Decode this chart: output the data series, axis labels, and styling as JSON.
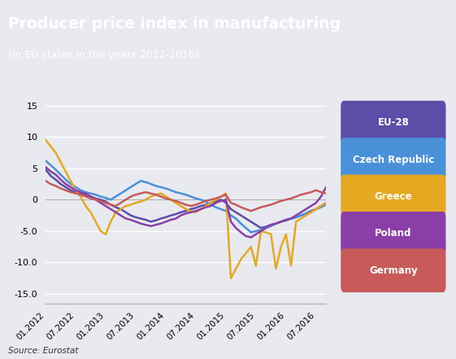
{
  "title": "Producer price index in manufacturing",
  "subtitle": "(in EU states in the years 2012-2016)",
  "source": "Source: Eurostat",
  "bg_chart": "#e8eaf0",
  "bg_title": "#12206e",
  "yticks": [
    -15,
    -10,
    -5,
    0,
    5,
    10,
    15
  ],
  "ytick_labels": [
    "-15.0",
    "-10.0",
    "-5.0",
    "0",
    "5",
    "10",
    "15"
  ],
  "x_tick_pos": [
    0,
    6,
    12,
    18,
    24,
    30,
    36,
    42,
    48,
    54
  ],
  "x_tick_labels": [
    "01.2012",
    "07.2012",
    "01.2013",
    "07.2013",
    "01.2014",
    "07.2014",
    "01.2015",
    "07.2015",
    "01.2016",
    "07.2016"
  ],
  "legend_items": [
    {
      "label": "EU-28",
      "color": "#5b4ea8"
    },
    {
      "label": "Czech Republic",
      "color": "#4a90d9"
    },
    {
      "label": "Greece",
      "color": "#e5a820"
    },
    {
      "label": "Poland",
      "color": "#8b3ea8"
    },
    {
      "label": "Germany",
      "color": "#c85a5a"
    }
  ],
  "series": {
    "EU-28": [
      4.8,
      3.8,
      3.2,
      2.5,
      2.0,
      1.5,
      1.2,
      1.0,
      0.8,
      0.5,
      0.2,
      0.0,
      -0.3,
      -0.8,
      -1.2,
      -1.5,
      -2.0,
      -2.5,
      -2.8,
      -3.0,
      -3.2,
      -3.5,
      -3.3,
      -3.0,
      -2.8,
      -2.5,
      -2.3,
      -2.0,
      -1.8,
      -1.5,
      -1.3,
      -1.0,
      -0.8,
      -0.5,
      -0.3,
      0.0,
      -0.5,
      -1.5,
      -2.0,
      -2.5,
      -3.0,
      -3.5,
      -4.0,
      -4.5,
      -4.3,
      -4.0,
      -3.8,
      -3.5,
      -3.3,
      -3.0,
      -2.8,
      -2.5,
      -2.2,
      -1.8,
      -1.5,
      -1.0,
      -0.5
    ],
    "Czech Republic": [
      6.2,
      5.5,
      4.8,
      4.0,
      3.2,
      2.5,
      2.0,
      1.5,
      1.2,
      1.0,
      0.8,
      0.5,
      0.3,
      0.0,
      0.5,
      1.0,
      1.5,
      2.0,
      2.5,
      3.0,
      2.8,
      2.5,
      2.2,
      2.0,
      1.8,
      1.5,
      1.2,
      1.0,
      0.8,
      0.5,
      0.2,
      0.0,
      -0.3,
      -0.8,
      -1.2,
      -1.5,
      -1.8,
      -2.5,
      -3.0,
      -3.8,
      -4.5,
      -5.2,
      -5.0,
      -4.8,
      -4.5,
      -4.2,
      -3.8,
      -3.5,
      -3.2,
      -3.0,
      -2.8,
      -2.5,
      -2.2,
      -2.0,
      -1.5,
      -1.2,
      -0.8
    ],
    "Greece": [
      9.5,
      8.5,
      7.5,
      6.0,
      4.5,
      3.0,
      1.5,
      0.5,
      -1.0,
      -2.0,
      -3.5,
      -5.0,
      -5.5,
      -3.5,
      -2.0,
      -1.5,
      -1.0,
      -0.8,
      -0.5,
      -0.3,
      0.0,
      0.5,
      0.8,
      1.0,
      0.5,
      0.0,
      -0.5,
      -1.0,
      -1.5,
      -1.8,
      -2.0,
      -1.5,
      -1.0,
      -0.5,
      0.0,
      0.5,
      1.0,
      -12.5,
      -11.0,
      -9.5,
      -8.5,
      -7.5,
      -10.5,
      -5.0,
      -5.2,
      -5.5,
      -11.0,
      -7.5,
      -5.5,
      -10.5,
      -3.5,
      -3.0,
      -2.5,
      -2.0,
      -1.5,
      -1.0,
      -0.5
    ],
    "Poland": [
      5.2,
      4.5,
      4.0,
      3.2,
      2.5,
      2.0,
      1.5,
      1.2,
      1.0,
      0.5,
      0.0,
      -0.5,
      -1.0,
      -1.5,
      -2.0,
      -2.5,
      -3.0,
      -3.2,
      -3.5,
      -3.8,
      -4.0,
      -4.2,
      -4.0,
      -3.8,
      -3.5,
      -3.2,
      -3.0,
      -2.5,
      -2.2,
      -2.0,
      -1.8,
      -1.5,
      -1.2,
      -1.0,
      -0.5,
      -0.2,
      0.0,
      -3.5,
      -4.5,
      -5.2,
      -5.8,
      -6.0,
      -5.5,
      -5.0,
      -4.5,
      -4.0,
      -3.8,
      -3.5,
      -3.2,
      -3.0,
      -2.5,
      -2.0,
      -1.5,
      -1.0,
      -0.5,
      0.5,
      2.0
    ],
    "Germany": [
      3.0,
      2.5,
      2.2,
      1.8,
      1.5,
      1.2,
      1.0,
      0.8,
      0.5,
      0.2,
      0.0,
      -0.2,
      -0.5,
      -0.8,
      -1.0,
      -0.5,
      0.0,
      0.5,
      0.8,
      1.0,
      1.2,
      1.0,
      0.8,
      0.5,
      0.2,
      0.0,
      -0.2,
      -0.5,
      -0.8,
      -1.0,
      -0.8,
      -0.5,
      -0.2,
      0.0,
      0.2,
      0.5,
      0.8,
      -0.5,
      -0.8,
      -1.2,
      -1.5,
      -1.8,
      -1.5,
      -1.2,
      -1.0,
      -0.8,
      -0.5,
      -0.2,
      0.0,
      0.2,
      0.5,
      0.8,
      1.0,
      1.2,
      1.5,
      1.2,
      1.0
    ]
  }
}
